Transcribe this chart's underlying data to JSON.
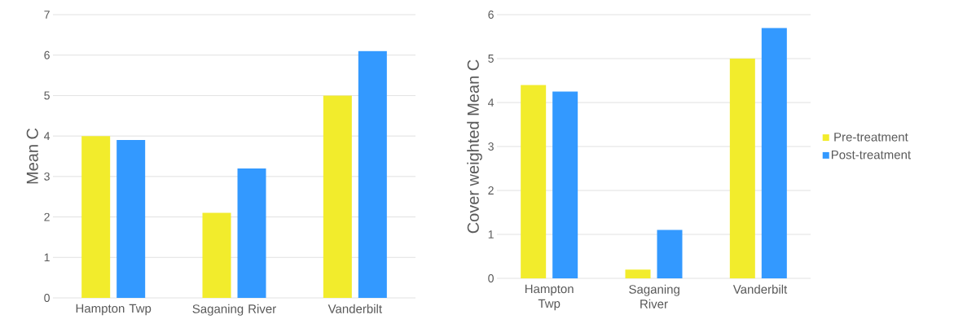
{
  "chart_data": [
    {
      "type": "bar",
      "ylabel": "Mean C",
      "categories": [
        "Hampton Twp",
        "Saganing River",
        "Vanderbilt"
      ],
      "series": [
        {
          "color": "#f2ec2c",
          "values": [
            4.0,
            2.1,
            5.0
          ]
        },
        {
          "color": "#3399ff",
          "values": [
            3.9,
            3.2,
            6.1
          ]
        }
      ],
      "ylim": [
        0,
        7
      ],
      "yticks": [
        0,
        1,
        2,
        3,
        4,
        5,
        6,
        7
      ],
      "grid": "y",
      "legend": false
    },
    {
      "type": "bar",
      "ylabel": "Cover weighted Mean C",
      "categories": [
        "Hampton Twp",
        "Saganing River",
        "Vanderbilt"
      ],
      "series": [
        {
          "name": "Pre-treatment",
          "color": "#f2ec2c",
          "values": [
            4.4,
            0.2,
            5.0
          ]
        },
        {
          "name": "Post-treatment",
          "color": "#3399ff",
          "values": [
            4.25,
            1.1,
            5.7
          ]
        }
      ],
      "ylim": [
        0,
        6
      ],
      "yticks": [
        0,
        1,
        2,
        3,
        4,
        5,
        6
      ],
      "grid": "y",
      "legend": "right"
    }
  ]
}
